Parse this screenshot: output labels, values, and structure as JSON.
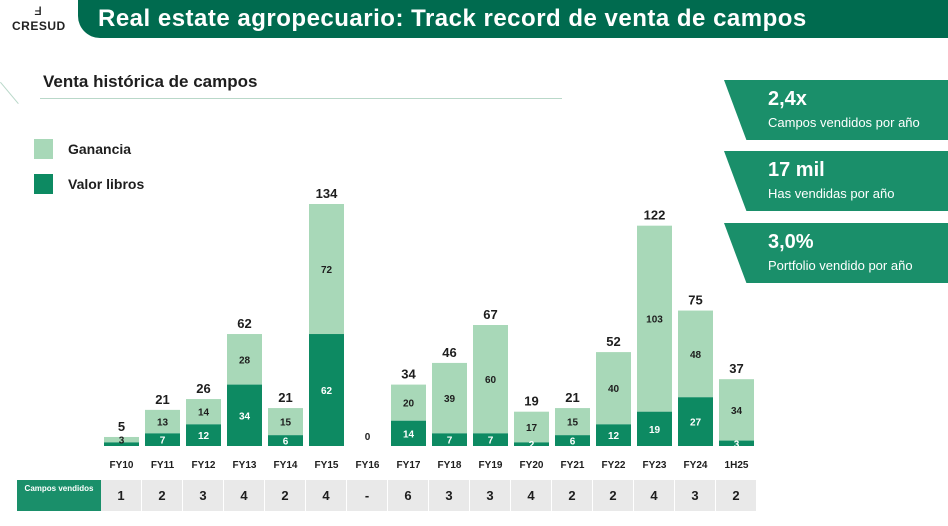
{
  "logo": {
    "text": "CRESUD",
    "mark": "ⅎ"
  },
  "header": {
    "title": "Real estate agropecuario: Track record de venta de campos"
  },
  "section": {
    "title": "Venta histórica de campos"
  },
  "legend": [
    {
      "label": "Ganancia",
      "color": "#a8d8b8"
    },
    {
      "label": "Valor libros",
      "color": "#0d8a62"
    }
  ],
  "kpis": [
    {
      "value": "2,4x",
      "label": "Campos vendidos por año"
    },
    {
      "value": "17 mil",
      "label": "Has vendidas por año"
    },
    {
      "value": "3,0%",
      "label": "Portfolio vendido por año"
    }
  ],
  "chart_data": {
    "type": "bar",
    "stacked": true,
    "categories": [
      "FY10",
      "FY11",
      "FY12",
      "FY13",
      "FY14",
      "FY15",
      "FY16",
      "FY17",
      "FY18",
      "FY19",
      "FY20",
      "FY21",
      "FY22",
      "FY23",
      "FY24",
      "1H25"
    ],
    "series": [
      {
        "name": "Valor libros",
        "color": "#0d8a62",
        "values": [
          2,
          7,
          12,
          34,
          6,
          62,
          0,
          14,
          7,
          7,
          2,
          6,
          12,
          19,
          27,
          3
        ]
      },
      {
        "name": "Ganancia",
        "color": "#a8d8b8",
        "values": [
          3,
          13,
          14,
          28,
          15,
          72,
          0,
          20,
          39,
          60,
          17,
          15,
          40,
          103,
          48,
          34
        ]
      }
    ],
    "segment_labels": {
      "Valor libros": [
        "",
        "7",
        "12",
        "34",
        "6",
        "62",
        "",
        "14",
        "7",
        "7",
        "2",
        "6",
        "12",
        "19",
        "27",
        "3"
      ],
      "Ganancia": [
        "3",
        "13",
        "14",
        "28",
        "15",
        "72",
        "",
        "20",
        "39",
        "60",
        "17",
        "15",
        "40",
        "103",
        "48",
        "34"
      ]
    },
    "totals": [
      "5",
      "21",
      "26",
      "62",
      "21",
      "134",
      "0",
      "34",
      "46",
      "67",
      "19",
      "21",
      "52",
      "122",
      "75",
      "37"
    ],
    "ylim": [
      0,
      134
    ],
    "title": "",
    "xlabel": "",
    "ylabel": ""
  },
  "campos_vendidos": {
    "label": "Campos vendidos",
    "values": [
      "1",
      "2",
      "3",
      "4",
      "2",
      "4",
      "-",
      "6",
      "3",
      "3",
      "4",
      "2",
      "2",
      "4",
      "3",
      "2"
    ]
  }
}
